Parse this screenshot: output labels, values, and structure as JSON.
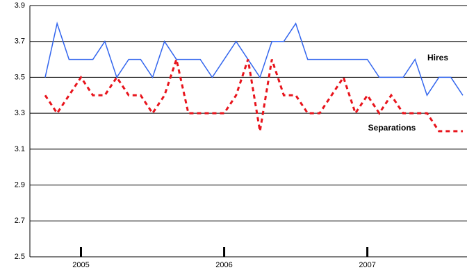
{
  "chart_data": {
    "type": "line",
    "categories": [
      null,
      null,
      null,
      "2005",
      null,
      null,
      null,
      null,
      null,
      null,
      null,
      null,
      null,
      null,
      null,
      "2006",
      null,
      null,
      null,
      null,
      null,
      null,
      null,
      null,
      null,
      null,
      null,
      "2007",
      null,
      null,
      null,
      null,
      null,
      null,
      null,
      null
    ],
    "series": [
      {
        "name": "Hires",
        "color": "#3366ee",
        "dashed": false,
        "values": [
          3.5,
          3.8,
          3.6,
          3.6,
          3.6,
          3.7,
          3.5,
          3.6,
          3.6,
          3.5,
          3.7,
          3.6,
          3.6,
          3.6,
          3.5,
          3.6,
          3.7,
          3.6,
          3.5,
          3.7,
          3.7,
          3.8,
          3.6,
          3.6,
          3.6,
          3.6,
          3.6,
          3.6,
          3.5,
          3.5,
          3.5,
          3.6,
          3.4,
          3.5,
          3.5,
          3.4
        ]
      },
      {
        "name": "Separations",
        "color": "#e8141c",
        "dashed": true,
        "values": [
          3.4,
          3.3,
          3.4,
          3.5,
          3.4,
          3.4,
          3.5,
          3.4,
          3.4,
          3.3,
          3.4,
          3.6,
          3.3,
          3.3,
          3.3,
          3.3,
          3.4,
          3.6,
          3.2,
          3.6,
          3.4,
          3.4,
          3.3,
          3.3,
          3.4,
          3.5,
          3.3,
          3.4,
          3.3,
          3.4,
          3.3,
          3.3,
          3.3,
          3.2,
          3.2,
          3.2
        ]
      }
    ],
    "ylim": [
      2.5,
      3.9
    ],
    "yticks": [
      2.5,
      2.7,
      2.9,
      3.1,
      3.3,
      3.5,
      3.7,
      3.9
    ],
    "grid": true
  }
}
